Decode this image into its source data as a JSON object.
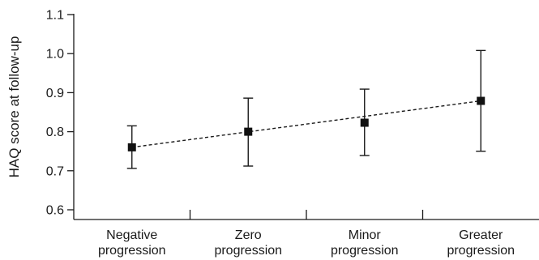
{
  "chart_data": {
    "type": "scatter",
    "title": "",
    "xlabel": "",
    "ylabel": "HAQ score at follow-up",
    "ylim": [
      0.6,
      1.1
    ],
    "yticks": [
      "0.6",
      "0.7",
      "0.8",
      "0.9",
      "1.0",
      "1.1"
    ],
    "categories": [
      [
        "Negative",
        "progression"
      ],
      [
        "Zero",
        "progression"
      ],
      [
        "Minor",
        "progression"
      ],
      [
        "Greater",
        "progression"
      ]
    ],
    "values": [
      0.76,
      0.8,
      0.823,
      0.879
    ],
    "error_low": [
      0.706,
      0.712,
      0.739,
      0.75
    ],
    "error_high": [
      0.815,
      0.886,
      0.909,
      1.008
    ],
    "trend_line": "dashed linear",
    "marker": "filled-square",
    "grid": false,
    "legend": "none"
  }
}
